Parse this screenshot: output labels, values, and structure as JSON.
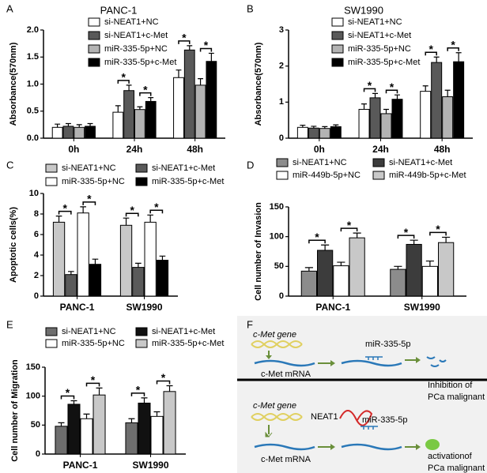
{
  "chart_data": [
    {
      "type": "bar",
      "panel_label": "A",
      "title": "PANC-1",
      "ylabel": "Absorbance(570nm)",
      "categories": [
        "0h",
        "24h",
        "48h"
      ],
      "series": [
        {
          "name": "si-NEAT1+NC",
          "color": "#ffffff",
          "values": [
            0.2,
            0.48,
            1.12
          ],
          "errors": [
            0.06,
            0.12,
            0.14
          ]
        },
        {
          "name": "si-NEAT1+c-Met",
          "color": "#595959",
          "values": [
            0.22,
            0.88,
            1.63
          ],
          "errors": [
            0.05,
            0.1,
            0.08
          ]
        },
        {
          "name": "miR-335-5p+NC",
          "color": "#b3b3b3",
          "values": [
            0.2,
            0.53,
            0.98
          ],
          "errors": [
            0.05,
            0.05,
            0.12
          ]
        },
        {
          "name": "miR-335-5p+c-Met",
          "color": "#000000",
          "values": [
            0.22,
            0.68,
            1.42
          ],
          "errors": [
            0.05,
            0.07,
            0.15
          ]
        }
      ],
      "ylim": [
        0,
        2
      ],
      "yticks": [
        {
          "value": 0,
          "label": "0.0"
        },
        {
          "value": 0.5,
          "label": "0.5"
        },
        {
          "value": 1,
          "label": "1.0"
        },
        {
          "value": 1.5,
          "label": "1.5"
        },
        {
          "value": 2,
          "label": "2.0"
        }
      ],
      "significance_label": "*"
    },
    {
      "type": "bar",
      "panel_label": "B",
      "title": "SW1990",
      "ylabel": "Absorbance(570nm)",
      "categories": [
        "0h",
        "24h",
        "48h"
      ],
      "series": [
        {
          "name": "si-NEAT1+NC",
          "color": "#ffffff",
          "values": [
            0.3,
            0.8,
            1.3
          ],
          "errors": [
            0.06,
            0.15,
            0.15
          ]
        },
        {
          "name": "si-NEAT1+c-Met",
          "color": "#595959",
          "values": [
            0.28,
            1.12,
            2.1
          ],
          "errors": [
            0.05,
            0.12,
            0.15
          ]
        },
        {
          "name": "miR-335-5p+NC",
          "color": "#b3b3b3",
          "values": [
            0.27,
            0.68,
            1.15
          ],
          "errors": [
            0.05,
            0.12,
            0.18
          ]
        },
        {
          "name": "miR-335-5p+c-Met",
          "color": "#000000",
          "values": [
            0.32,
            1.08,
            2.12
          ],
          "errors": [
            0.05,
            0.12,
            0.25
          ]
        }
      ],
      "ylim": [
        0,
        3
      ],
      "yticks": [
        0,
        1,
        2,
        3
      ],
      "significance_label": "*"
    },
    {
      "type": "bar",
      "panel_label": "C",
      "ylabel": "Apoptotic cells(%)",
      "categories": [
        "PANC-1",
        "SW1990"
      ],
      "series": [
        {
          "name": "si-NEAT1+NC",
          "color": "#c8c8c8",
          "values": [
            7.2,
            6.9
          ],
          "errors": [
            0.6,
            0.7
          ]
        },
        {
          "name": "si-NEAT1+c-Met",
          "color": "#5a5a5a",
          "values": [
            2.1,
            2.8
          ],
          "errors": [
            0.3,
            0.4
          ]
        },
        {
          "name": "miR-335-5p+NC",
          "color": "#ffffff",
          "values": [
            8.1,
            7.2
          ],
          "errors": [
            0.6,
            0.7
          ]
        },
        {
          "name": "miR-335-5p+c-Met",
          "color": "#000000",
          "values": [
            3.1,
            3.5
          ],
          "errors": [
            0.5,
            0.4
          ]
        }
      ],
      "ylim": [
        0,
        10
      ],
      "yticks": [
        0,
        2,
        4,
        6,
        8,
        10
      ],
      "significance_label": "*"
    },
    {
      "type": "bar",
      "panel_label": "D",
      "ylabel": "Cell number of Invasion",
      "categories": [
        "PANC-1",
        "SW1990"
      ],
      "series": [
        {
          "name": "si-NEAT1+NC",
          "color": "#8c8c8c",
          "values": [
            42,
            45
          ],
          "errors": [
            6,
            5
          ]
        },
        {
          "name": "si-NEAT1+c-Met",
          "color": "#3c3c3c",
          "values": [
            77,
            87
          ],
          "errors": [
            9,
            7
          ]
        },
        {
          "name": "miR-449b-5p+NC",
          "color": "#ffffff",
          "values": [
            51,
            50
          ],
          "errors": [
            6,
            9
          ]
        },
        {
          "name": "miR-449b-5p+c-Met",
          "color": "#c8c8c8",
          "values": [
            98,
            90
          ],
          "errors": [
            8,
            9
          ]
        }
      ],
      "ylim": [
        0,
        150
      ],
      "yticks": [
        0,
        50,
        100,
        150
      ],
      "significance_label": "*"
    },
    {
      "type": "bar",
      "panel_label": "E",
      "ylabel": "Cell number of Migration",
      "categories": [
        "PANC-1",
        "SW1990"
      ],
      "series": [
        {
          "name": "si-NEAT1+NC",
          "color": "#6e6e6e",
          "values": [
            48,
            54
          ],
          "errors": [
            6,
            7
          ]
        },
        {
          "name": "si-NEAT1+c-Met",
          "color": "#111111",
          "values": [
            86,
            88
          ],
          "errors": [
            6,
            9
          ]
        },
        {
          "name": "miR-335-5p+NC",
          "color": "#ffffff",
          "values": [
            61,
            65
          ],
          "errors": [
            8,
            8
          ]
        },
        {
          "name": "miR-335-5p+c-Met",
          "color": "#c8c8c8",
          "values": [
            102,
            108
          ],
          "errors": [
            12,
            10
          ]
        }
      ],
      "ylim": [
        0,
        150
      ],
      "yticks": [
        0,
        50,
        100,
        150
      ],
      "significance_label": "*"
    }
  ],
  "diagram": {
    "panel_label": "F",
    "top": {
      "gene": "c-Met gene",
      "mrna": "c-Met mRNA",
      "mirna": "miR-335-5p",
      "result": [
        "Inhibition of",
        "PCa malignant"
      ]
    },
    "bottom": {
      "gene": "c-Met gene",
      "mrna": "c-Met mRNA",
      "lncrna": "NEAT1",
      "mirna": "miR-335-5p",
      "result": [
        "activationof",
        "PCa malignant"
      ]
    }
  }
}
